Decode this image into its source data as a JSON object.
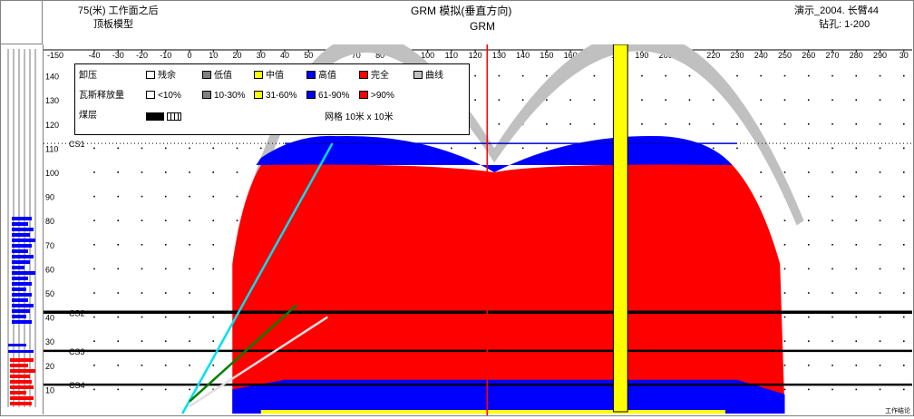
{
  "header": {
    "left_line1": "75(米) 工作面之后",
    "left_line2": "顶板模型",
    "center_line1": "GRM 模拟(垂直方向)",
    "center_line2": "GRM",
    "right_line1": "演示_2004. 长臂44",
    "right_line2": "钻孔: 1-200"
  },
  "axes": {
    "x_ticks": [
      "-150",
      "-40",
      "-30",
      "-20",
      "-10",
      "0",
      "10",
      "20",
      "30",
      "40",
      "50",
      "60",
      "70",
      "80",
      "90",
      "100",
      "110",
      "120",
      "130",
      "140",
      "150",
      "160",
      "170",
      "180",
      "190",
      "200",
      "210",
      "220",
      "230",
      "240",
      "250",
      "260",
      "270",
      "280",
      "290",
      "30"
    ],
    "y_ticks": [
      "140",
      "130",
      "120",
      "110",
      "100",
      "90",
      "80",
      "70",
      "60",
      "50",
      "40",
      "30",
      "20",
      "10"
    ]
  },
  "seams": [
    {
      "label": "CS1",
      "y": 112
    },
    {
      "label": "CS2",
      "y": 42
    },
    {
      "label": "CS3",
      "y": 26
    },
    {
      "label": "CS4",
      "y": 12
    }
  ],
  "legend": {
    "row1_label": "卸压",
    "row1_items": [
      {
        "label": "残余",
        "color": "#ffffff"
      },
      {
        "label": "低值",
        "color": "#808080"
      },
      {
        "label": "中值",
        "color": "#ffff00"
      },
      {
        "label": "高值",
        "color": "#0000ff"
      },
      {
        "label": "完全",
        "color": "#ff0000"
      },
      {
        "label": "曲线",
        "color": "#c0c0c0"
      }
    ],
    "row2_label": "瓦斯释放量",
    "row2_items": [
      {
        "label": "<10%",
        "color": "#ffffff"
      },
      {
        "label": "10-30%",
        "color": "#808080"
      },
      {
        "label": "31-60%",
        "color": "#ffff00"
      },
      {
        "label": "61-90%",
        "color": "#0000ff"
      },
      {
        "label": ">90%",
        "color": "#ff0000"
      }
    ],
    "row3_label": "煤层",
    "grid_note": "网格 10米 x 10米"
  },
  "corner_label": "工作结论",
  "colors": {
    "red": "#ff0000",
    "blue": "#0000ff",
    "yellow": "#ffff00",
    "gray": "#c0c0c0",
    "cyan": "#00e0f0",
    "green": "#008000",
    "seam": "#000000",
    "center_line": "#ff0000"
  }
}
